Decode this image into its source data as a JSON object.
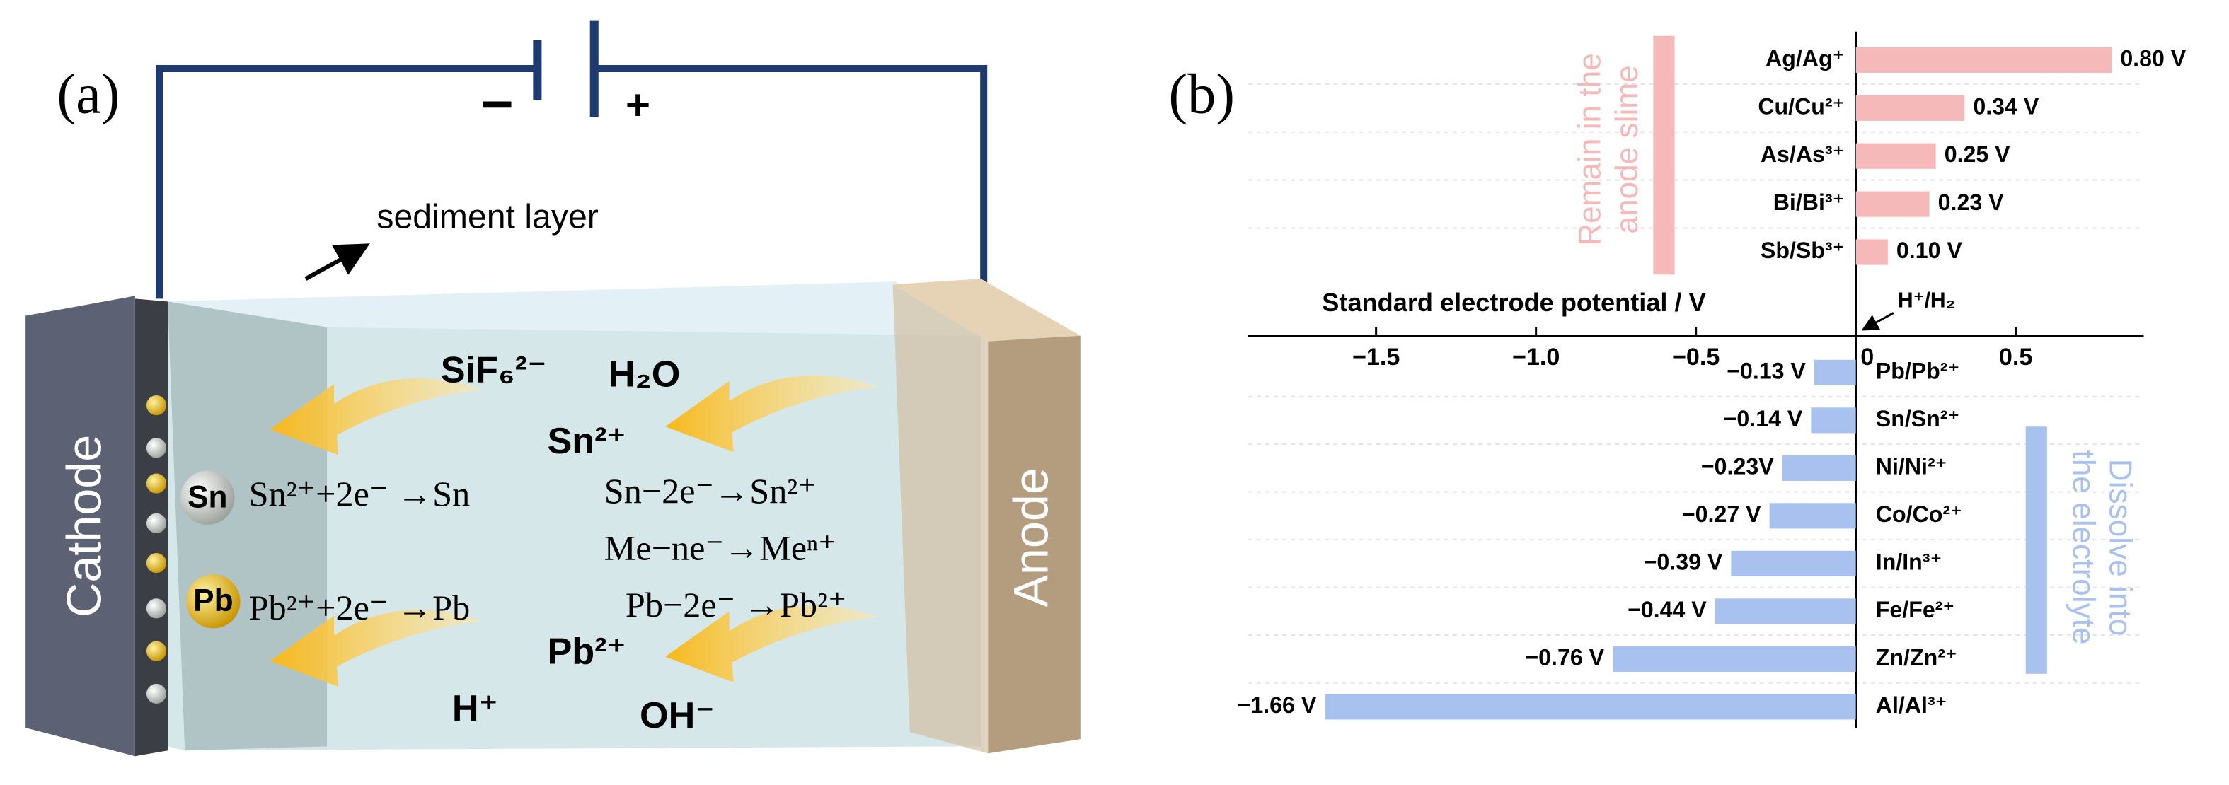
{
  "panel_a": {
    "label": "(a)",
    "minus": "−",
    "plus": "+",
    "sediment": "sediment layer",
    "cathode": "Cathode",
    "anode": "Anode",
    "sio": "SiF₆²⁻",
    "water": "H₂O",
    "sn_ion": "Sn²⁺",
    "pb_ion": "Pb²⁺",
    "proton": "H⁺",
    "hydroxide": "OH⁻",
    "sn_sphere": "Sn",
    "pb_sphere": "Pb",
    "sn_cathode": "Sn²⁺+2e⁻ →Sn",
    "pb_cathode": "Pb²⁺+2e⁻ →Pb",
    "sn_anode": "Sn−2e⁻→Sn²⁺",
    "me_anode": "Me−ne⁻→Meⁿ⁺",
    "pb_anode": "Pb−2e⁻ →Pb²⁺"
  },
  "chart_data": {
    "type": "barh",
    "panel_label": "(b)",
    "xlabel": "Standard electrode potential / V",
    "categories": [
      "Ag/Ag⁺",
      "Cu/Cu²⁺",
      "As/As³⁺",
      "Bi/Bi³⁺",
      "Sb/Sb³⁺",
      "Pb/Pb²⁺",
      "Sn/Sn²⁺",
      "Ni/Ni²⁺",
      "Co/Co²⁺",
      "In/In³⁺",
      "Fe/Fe²⁺",
      "Zn/Zn²⁺",
      "Al/Al³⁺"
    ],
    "values": [
      0.8,
      0.34,
      0.25,
      0.23,
      0.1,
      -0.13,
      -0.14,
      -0.23,
      -0.27,
      -0.39,
      -0.44,
      -0.76,
      -1.66
    ],
    "value_labels": [
      "0.80 V",
      "0.34 V",
      "0.25 V",
      "0.23 V",
      "0.10 V",
      "−0.13 V",
      "−0.14 V",
      "−0.23V",
      "−0.27 V",
      "−0.39 V",
      "−0.44 V",
      "−0.76 V",
      "−1.66 V"
    ],
    "colors": {
      "positive": "#f5b9b9",
      "negative": "#a9c1ef"
    },
    "xlim": [
      -1.9,
      0.9
    ],
    "xticks": [
      {
        "value": -1.5,
        "label": "−1.5"
      },
      {
        "value": -1.0,
        "label": "−1.0"
      },
      {
        "value": -0.5,
        "label": "−0.5"
      },
      0,
      0.5
    ],
    "annotations": {
      "reference": "H⁺/H₂",
      "remain": [
        "Remain in the",
        "anode slime"
      ],
      "dissolve": [
        "Dissolve into",
        "the electrolyte"
      ]
    }
  }
}
